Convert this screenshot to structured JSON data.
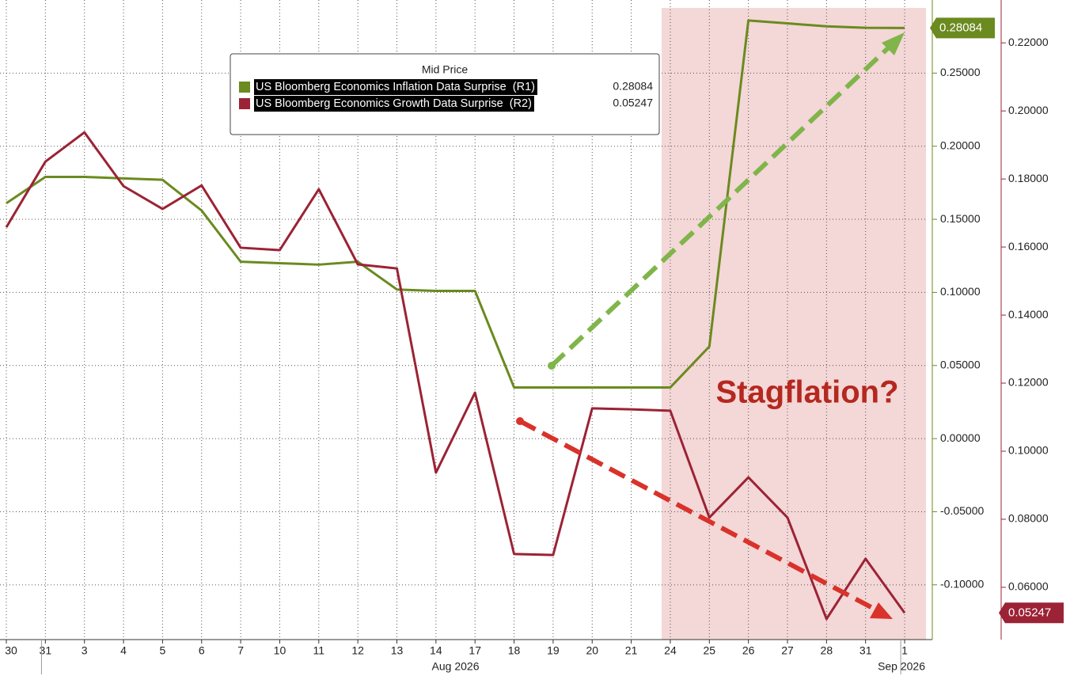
{
  "chart_data": {
    "type": "line",
    "legend_title": "Mid Price",
    "annotation": "Stagflation?",
    "categories": [
      "30",
      "31",
      "3",
      "4",
      "5",
      "6",
      "7",
      "10",
      "11",
      "12",
      "13",
      "14",
      "17",
      "18",
      "19",
      "20",
      "21",
      "24",
      "25",
      "26",
      "27",
      "28",
      "31",
      "1"
    ],
    "x_groups": [
      {
        "label": "Aug 2026",
        "first": 1,
        "last": 22
      },
      {
        "label": "Sep 2026",
        "first": 23,
        "last": 23
      }
    ],
    "series": [
      {
        "name": "US Bloomberg Economics Inflation Data Surprise  (R1)",
        "color": "#6b8a1f",
        "axis": "y",
        "values": [
          0.161,
          0.179,
          0.179,
          0.178,
          0.177,
          0.156,
          0.121,
          0.12,
          0.119,
          0.121,
          0.102,
          0.101,
          0.101,
          0.035,
          0.035,
          0.035,
          0.035,
          0.035,
          0.063,
          0.286,
          0.284,
          0.282,
          0.281,
          0.28084
        ]
      },
      {
        "name": "US Bloomberg Economics Growth Data Surprise  (R2)",
        "color": "#9b2335",
        "axis": "y2",
        "values": [
          0.1658,
          0.1851,
          0.1937,
          0.1779,
          0.1712,
          0.1781,
          0.1598,
          0.1591,
          0.177,
          0.1549,
          0.1537,
          0.0937,
          0.1172,
          0.0698,
          0.0695,
          0.1126,
          0.1123,
          0.1119,
          0.0805,
          0.0923,
          0.0805,
          0.0507,
          0.0684,
          0.05247
        ]
      }
    ],
    "ylim": [
      -0.138,
      0.3
    ],
    "yticks": [
      {
        "value": -0.1,
        "label": "-0.10000"
      },
      {
        "value": -0.05,
        "label": "-0.05000"
      },
      {
        "value": 0,
        "label": "0.00000"
      },
      {
        "value": 0.05,
        "label": "0.05000"
      },
      {
        "value": 0.1,
        "label": "0.10000"
      },
      {
        "value": 0.15,
        "label": "0.15000"
      },
      {
        "value": 0.2,
        "label": "0.20000"
      },
      {
        "value": 0.25,
        "label": "0.25000"
      }
    ],
    "y2lim": [
      0.0444,
      0.2326
    ],
    "y2ticks": [
      {
        "value": 0.06,
        "label": "0.06000"
      },
      {
        "value": 0.08,
        "label": "0.08000"
      },
      {
        "value": 0.1,
        "label": "0.10000"
      },
      {
        "value": 0.12,
        "label": "0.12000"
      },
      {
        "value": 0.14,
        "label": "0.14000"
      },
      {
        "value": 0.16,
        "label": "0.16000"
      },
      {
        "value": 0.18,
        "label": "0.18000"
      },
      {
        "value": 0.2,
        "label": "0.20000"
      },
      {
        "value": 0.22,
        "label": "0.22000"
      }
    ],
    "grid": true
  }
}
